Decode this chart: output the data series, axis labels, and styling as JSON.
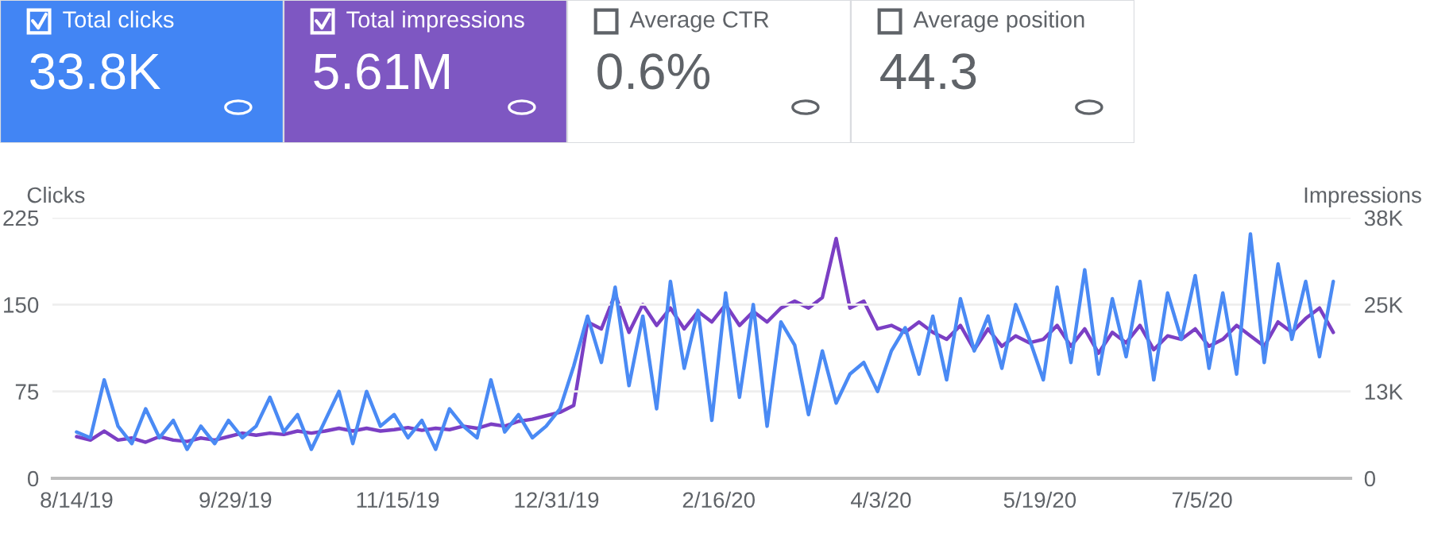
{
  "chart_data": [
    {
      "type": "other",
      "categories": [
        "Total clicks",
        "Total impressions",
        "Average CTR",
        "Average position"
      ],
      "value_labels": [
        "33.8K",
        "5.61M",
        "0.6%",
        "44.3"
      ],
      "colors": [
        "#4285f4",
        "#7e57c2",
        "#ffffff",
        "#ffffff"
      ]
    },
    {
      "type": "line",
      "xlabel": null,
      "ylabel": "Clicks",
      "y2label": "Impressions",
      "x": [
        "2019-08-14",
        "2019-08-18",
        "2019-08-22",
        "2019-08-26",
        "2019-08-30",
        "2019-09-03",
        "2019-09-07",
        "2019-09-11",
        "2019-09-15",
        "2019-09-19",
        "2019-09-23",
        "2019-09-27",
        "2019-10-01",
        "2019-10-05",
        "2019-10-09",
        "2019-10-13",
        "2019-10-17",
        "2019-10-21",
        "2019-10-25",
        "2019-10-29",
        "2019-11-02",
        "2019-11-06",
        "2019-11-10",
        "2019-11-14",
        "2019-11-18",
        "2019-11-22",
        "2019-11-26",
        "2019-11-30",
        "2019-12-04",
        "2019-12-08",
        "2019-12-12",
        "2019-12-16",
        "2019-12-20",
        "2019-12-24",
        "2019-12-28",
        "2020-01-01",
        "2020-01-05",
        "2020-01-09",
        "2020-01-13",
        "2020-01-17",
        "2020-01-21",
        "2020-01-25",
        "2020-01-29",
        "2020-02-02",
        "2020-02-06",
        "2020-02-10",
        "2020-02-14",
        "2020-02-18",
        "2020-02-22",
        "2020-02-26",
        "2020-03-01",
        "2020-03-05",
        "2020-03-09",
        "2020-03-13",
        "2020-03-17",
        "2020-03-21",
        "2020-03-25",
        "2020-03-29",
        "2020-04-02",
        "2020-04-06",
        "2020-04-10",
        "2020-04-14",
        "2020-04-18",
        "2020-04-22",
        "2020-04-26",
        "2020-04-30",
        "2020-05-04",
        "2020-05-08",
        "2020-05-12",
        "2020-05-16",
        "2020-05-20",
        "2020-05-24",
        "2020-05-28",
        "2020-06-01",
        "2020-06-05",
        "2020-06-09",
        "2020-06-13",
        "2020-06-17",
        "2020-06-21",
        "2020-06-25",
        "2020-06-29",
        "2020-07-03",
        "2020-07-07",
        "2020-07-11",
        "2020-07-15",
        "2020-07-19",
        "2020-07-23",
        "2020-07-27",
        "2020-07-31",
        "2020-08-04",
        "2020-08-08",
        "2020-08-12"
      ],
      "series": [
        {
          "color": "#7b3fc4",
          "axis": "y2",
          "values": [
            6000,
            5500,
            6800,
            5500,
            5800,
            5200,
            6000,
            5500,
            5300,
            5800,
            5500,
            6000,
            6500,
            6200,
            6500,
            6300,
            6800,
            6500,
            6800,
            7200,
            6800,
            7200,
            6800,
            7000,
            7300,
            6900,
            7200,
            7000,
            7500,
            7200,
            7800,
            7500,
            8200,
            8500,
            9000,
            9500,
            10500,
            22500,
            21500,
            26500,
            21000,
            25000,
            22000,
            24500,
            21500,
            24000,
            22500,
            25000,
            22000,
            24000,
            22500,
            24500,
            25500,
            24500,
            26000,
            34500,
            24500,
            25500,
            21500,
            22000,
            21000,
            22500,
            21000,
            20000,
            22000,
            18500,
            21500,
            19000,
            20500,
            19500,
            20000,
            22000,
            19000,
            21500,
            18000,
            21000,
            19500,
            22000,
            18500,
            20500,
            20000,
            21500,
            19000,
            20000,
            22000,
            20500,
            19000,
            22500,
            21000,
            23000,
            24500,
            21000
          ]
        },
        {
          "color": "#4a8af4",
          "values": [
            40,
            35,
            85,
            45,
            30,
            60,
            35,
            50,
            25,
            45,
            30,
            50,
            35,
            45,
            70,
            40,
            55,
            25,
            50,
            75,
            30,
            75,
            45,
            55,
            35,
            50,
            25,
            60,
            45,
            35,
            85,
            40,
            55,
            35,
            45,
            60,
            97,
            140,
            100,
            165,
            80,
            140,
            60,
            170,
            95,
            145,
            50,
            160,
            70,
            150,
            45,
            135,
            115,
            55,
            110,
            65,
            90,
            100,
            75,
            110,
            130,
            90,
            140,
            85,
            155,
            110,
            140,
            95,
            150,
            120,
            85,
            165,
            100,
            180,
            90,
            155,
            105,
            170,
            85,
            160,
            120,
            175,
            95,
            160,
            90,
            211,
            100,
            185,
            120,
            170,
            105,
            170
          ]
        }
      ],
      "xlim": [
        "2019-08-07",
        "2020-08-17"
      ],
      "xticks": [
        {
          "value": "2019-08-14",
          "label": "8/14/19"
        },
        {
          "value": "2019-09-29",
          "label": "9/29/19"
        },
        {
          "value": "2019-11-15",
          "label": "11/15/19"
        },
        {
          "value": "2019-12-31",
          "label": "12/31/19"
        },
        {
          "value": "2020-02-16",
          "label": "2/16/20"
        },
        {
          "value": "2020-04-03",
          "label": "4/3/20"
        },
        {
          "value": "2020-05-19",
          "label": "5/19/20"
        },
        {
          "value": "2020-07-05",
          "label": "7/5/20"
        }
      ],
      "ylim": [
        0,
        225
      ],
      "yticks": [
        0,
        75,
        150,
        225
      ],
      "y2lim": [
        0,
        37500
      ],
      "y2ticks": [
        0,
        {
          "value": 12500,
          "label": "13K"
        },
        {
          "value": 25000,
          "label": "25K"
        },
        {
          "value": 37500,
          "label": "38K"
        }
      ],
      "grid": "y",
      "line_style": "solid",
      "marker": "none"
    }
  ]
}
